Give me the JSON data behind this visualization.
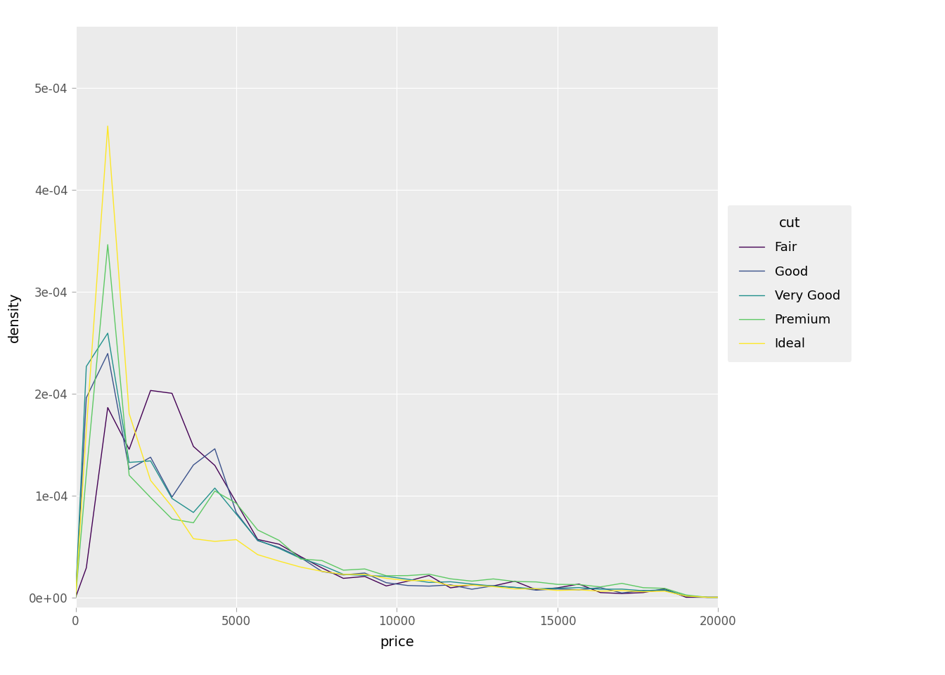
{
  "title": "",
  "xlabel": "price",
  "ylabel": "density",
  "legend_title": "cut",
  "cuts": [
    "Fair",
    "Good",
    "Very Good",
    "Premium",
    "Ideal"
  ],
  "colors": {
    "Fair": "#440154",
    "Good": "#3b528b",
    "Very Good": "#21908c",
    "Premium": "#5dc963",
    "Ideal": "#fde725"
  },
  "xlim": [
    0,
    20000
  ],
  "ylim": [
    -1e-05,
    0.00056
  ],
  "yticks": [
    0,
    0.0001,
    0.0002,
    0.0003,
    0.0004,
    0.0005
  ],
  "ytick_labels": [
    "0e+00",
    "1e-04",
    "2e-04",
    "3e-04",
    "4e-04",
    "5e-04"
  ],
  "xticks": [
    0,
    5000,
    10000,
    15000,
    20000
  ],
  "bins": 30,
  "background_color": "#ebebeb",
  "grid_color": "white",
  "line_width": 1.0,
  "legend_fontsize": 13,
  "axis_label_fontsize": 14,
  "tick_fontsize": 12
}
